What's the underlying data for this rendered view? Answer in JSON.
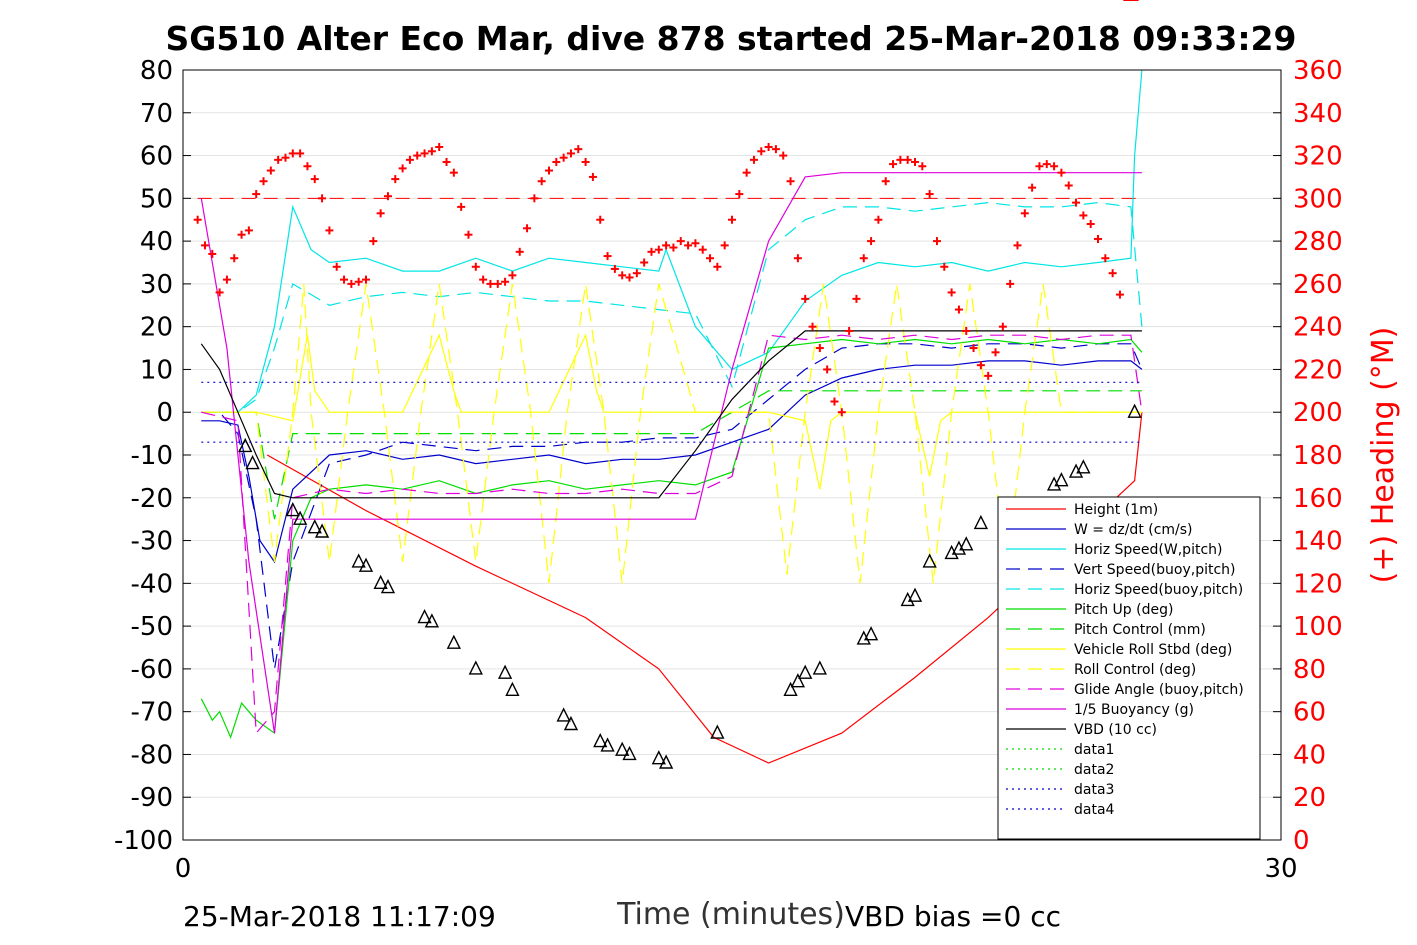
{
  "chart_data": {
    "type": "line",
    "title": "SG510 Alter Eco Mar, dive 878 started 25-Mar-2018 09:33:29",
    "xlabel": "Time (minutes)",
    "ylabel_right": "(+) Heading (°M)",
    "xlim": [
      0,
      30
    ],
    "ylim_left": [
      -100,
      80
    ],
    "ylim_right": [
      0,
      360
    ],
    "x_ticks": [
      "0",
      "30"
    ],
    "y_ticks_left": [
      "80",
      "70",
      "60",
      "50",
      "40",
      "30",
      "20",
      "10",
      "0",
      "-10",
      "-20",
      "-30",
      "-40",
      "-50",
      "-60",
      "-70",
      "-80",
      "-90",
      "-100"
    ],
    "y_ticks_right": [
      "360",
      "340",
      "320",
      "300",
      "280",
      "260",
      "240",
      "220",
      "200",
      "180",
      "160",
      "140",
      "120",
      "100",
      "80",
      "60",
      "40",
      "20",
      "0"
    ],
    "grid": "horizontal",
    "legend_position": "bottom-right",
    "footer_left": "25-Mar-2018 11:17:09",
    "footer_right": "VBD bias =0 cc",
    "colors": {
      "red": "#ff0000",
      "blue": "#0000cc",
      "cyan": "#00e5e5",
      "green": "#00dd00",
      "yellow": "#ffff00",
      "magenta": "#dd00dd",
      "black": "#000000"
    },
    "series": [
      {
        "name": "Height (1m)",
        "color": "#ff0000",
        "dash": "solid",
        "x": [
          2.3,
          5,
          8,
          11,
          13,
          14.5,
          16,
          18,
          20,
          22,
          24,
          26,
          26.2
        ],
        "y": [
          -10,
          -23,
          -36,
          -48,
          -60,
          -76,
          -82,
          -75,
          -62,
          -48,
          -32,
          -16,
          0
        ]
      },
      {
        "name": "W = dz/dt (cm/s)",
        "color": "#0000cc",
        "dash": "solid",
        "x": [
          0.5,
          1,
          1.5,
          1.8,
          2.1,
          2.5,
          3,
          4,
          5,
          6,
          7,
          8,
          9,
          10,
          11,
          12,
          13,
          14,
          15,
          16,
          17,
          18,
          19,
          20,
          21,
          22,
          23,
          24,
          25,
          25.9,
          26.2
        ],
        "y": [
          -2,
          -2,
          -3,
          -15,
          -30,
          -35,
          -18,
          -10,
          -9,
          -11,
          -10,
          -12,
          -11,
          -10,
          -12,
          -11,
          -11,
          -10,
          -7,
          -4,
          4,
          8,
          10,
          11,
          11,
          12,
          12,
          11,
          12,
          12,
          10
        ]
      },
      {
        "name": "Horiz Speed(W,pitch)",
        "color": "#00e5e5",
        "dash": "solid",
        "x": [
          0.5,
          1,
          1.5,
          2,
          2.5,
          3,
          3.5,
          4,
          5,
          6,
          7,
          8,
          9,
          10,
          11,
          12,
          13,
          13.2,
          14,
          15,
          16,
          17,
          18,
          19,
          20,
          21,
          22,
          23,
          24,
          25,
          25.9,
          26,
          26.2
        ],
        "y": [
          0,
          0,
          0,
          4,
          20,
          48,
          38,
          35,
          36,
          33,
          33,
          36,
          33,
          36,
          35,
          34,
          33,
          38,
          20,
          10,
          14,
          26,
          32,
          35,
          34,
          35,
          33,
          35,
          34,
          35,
          36,
          60,
          80
        ]
      },
      {
        "name": "Vert Speed(buoy,pitch)",
        "color": "#0000cc",
        "dash": "dash",
        "x": [
          0.5,
          1,
          1.5,
          2,
          2.5,
          3,
          4,
          5,
          6,
          7,
          8,
          9,
          10,
          11,
          12,
          13,
          14,
          15,
          16,
          17,
          18,
          19,
          20,
          21,
          22,
          23,
          24,
          25,
          25.9,
          26.2
        ],
        "y": [
          0,
          0,
          -5,
          -25,
          -60,
          -35,
          -12,
          -10,
          -7,
          -8,
          -9,
          -8,
          -8,
          -7,
          -7,
          -6,
          -6,
          -4,
          3,
          10,
          15,
          16,
          16,
          15,
          16,
          16,
          15,
          16,
          16,
          10
        ]
      },
      {
        "name": "Horiz Speed(buoy,pitch)",
        "color": "#00e5e5",
        "dash": "dash",
        "x": [
          0.5,
          1,
          1.5,
          2,
          2.5,
          3,
          4,
          5,
          6,
          7,
          8,
          9,
          10,
          11,
          12,
          13,
          14,
          15,
          16,
          17,
          18,
          19,
          20,
          21,
          22,
          23,
          24,
          25,
          25.9,
          26.2
        ],
        "y": [
          0,
          0,
          0,
          3,
          15,
          30,
          25,
          27,
          28,
          27,
          28,
          27,
          26,
          26,
          25,
          24,
          23,
          6,
          38,
          45,
          48,
          48,
          47,
          48,
          49,
          48,
          48,
          49,
          48,
          20
        ]
      },
      {
        "name": "Pitch Up (deg)",
        "color": "#00dd00",
        "dash": "solid",
        "x": [
          0.5,
          0.8,
          1,
          1.3,
          1.6,
          2,
          2.5,
          3,
          3.5,
          4,
          5,
          6,
          7,
          8,
          9,
          10,
          11,
          12,
          13,
          14,
          15,
          16,
          17,
          18,
          19,
          20,
          21,
          22,
          23,
          24,
          25,
          25.9,
          26.2
        ],
        "y": [
          -67,
          -72,
          -70,
          -76,
          -68,
          -72,
          -75,
          -30,
          -20,
          -18,
          -17,
          -18,
          -16,
          -19,
          -17,
          -16,
          -18,
          -17,
          -16,
          -17,
          -14,
          15,
          16,
          17,
          16,
          17,
          16,
          17,
          16,
          17,
          16,
          17,
          14
        ]
      },
      {
        "name": "Pitch Control (mm)",
        "color": "#00dd00",
        "dash": "dash",
        "x": [
          0.5,
          2,
          2.5,
          3,
          4,
          5,
          6,
          7,
          8,
          9,
          10,
          11,
          12,
          13,
          14,
          15,
          16,
          17,
          18,
          19,
          20,
          21,
          22,
          23,
          24,
          25,
          26.2
        ],
        "y": [
          0,
          0,
          -25,
          -5,
          -5,
          -5,
          -5,
          -5,
          -5,
          -5,
          -5,
          -5,
          -5,
          -5,
          -5,
          0,
          5,
          5,
          5,
          5,
          5,
          5,
          5,
          5,
          5,
          5,
          5
        ]
      },
      {
        "name": "Vehicle Roll Stbd (deg)",
        "color": "#ffff00",
        "dash": "solid",
        "x": [
          0.5,
          1.5,
          2,
          3,
          3.4,
          3.6,
          4,
          5,
          6,
          7,
          7.4,
          7.6,
          8,
          9,
          10,
          11,
          11.3,
          11.5,
          12,
          13,
          14,
          15,
          16,
          17,
          17.4,
          17.7,
          18,
          19,
          20,
          20.4,
          20.7,
          21,
          22,
          23,
          24,
          25,
          26.2
        ],
        "y": [
          0,
          0,
          0,
          -2,
          18,
          5,
          0,
          0,
          0,
          18,
          5,
          0,
          0,
          0,
          0,
          18,
          5,
          0,
          0,
          0,
          0,
          0,
          0,
          -2,
          -18,
          -2,
          0,
          0,
          0,
          -15,
          -2,
          0,
          0,
          0,
          0,
          0,
          0
        ]
      },
      {
        "name": "Roll Control (deg)",
        "color": "#ffff00",
        "dash": "dash",
        "x": [
          0.5,
          1,
          1.5,
          2,
          2.5,
          3,
          3.3,
          3.5,
          4,
          4.5,
          5,
          5.5,
          6,
          6.5,
          7,
          7.5,
          8,
          8.5,
          9,
          9.5,
          10,
          10.5,
          11,
          11.5,
          12,
          12.5,
          13,
          14,
          15,
          16,
          16.5,
          17,
          17.5,
          18,
          18.5,
          19,
          19.5,
          20,
          20.5,
          21,
          21.5,
          22,
          22.5,
          23,
          23.5,
          24,
          25,
          26.2
        ],
        "y": [
          0,
          0,
          0,
          0,
          -35,
          0,
          30,
          0,
          -35,
          0,
          30,
          0,
          -35,
          0,
          30,
          0,
          -35,
          0,
          30,
          0,
          -40,
          0,
          30,
          0,
          -40,
          0,
          30,
          0,
          0,
          0,
          -38,
          0,
          30,
          0,
          -40,
          0,
          30,
          0,
          -40,
          0,
          30,
          0,
          -38,
          0,
          30,
          0,
          0,
          0
        ]
      },
      {
        "name": "Glide Angle (buoy,pitch)",
        "color": "#dd00dd",
        "dash": "dash",
        "x": [
          0.5,
          1.5,
          2,
          2.5,
          3,
          4,
          5,
          6,
          7,
          8,
          9,
          10,
          11,
          12,
          13,
          14,
          15,
          16,
          17,
          18,
          19,
          20,
          21,
          22,
          23,
          24,
          25,
          25.9,
          26.2
        ],
        "y": [
          0,
          -2,
          -75,
          -70,
          -20,
          -18,
          -19,
          -18,
          -19,
          -19,
          -18,
          -19,
          -19,
          -18,
          -19,
          -19,
          -15,
          18,
          17,
          18,
          17,
          18,
          17,
          18,
          18,
          17,
          18,
          18,
          0
        ]
      },
      {
        "name": "1/5 Buoyancy (g)",
        "color": "#dd00dd",
        "dash": "solid",
        "x": [
          0.5,
          1.2,
          1.8,
          2.5,
          3,
          4,
          6,
          8,
          10,
          12,
          13,
          14,
          15,
          16,
          17,
          18,
          20,
          22,
          24,
          26.2
        ],
        "y": [
          50,
          15,
          -35,
          -75,
          -25,
          -25,
          -25,
          -25,
          -25,
          -25,
          -25,
          -25,
          10,
          40,
          55,
          56,
          56,
          56,
          56,
          56
        ]
      },
      {
        "name": "VBD (10 cc)",
        "color": "#000000",
        "dash": "solid",
        "x": [
          0.5,
          1,
          1.5,
          2,
          2.5,
          3,
          4,
          6,
          8,
          10,
          11.5,
          13,
          14,
          15,
          16,
          17,
          18,
          20,
          22,
          24,
          26.2
        ],
        "y": [
          16,
          10,
          0,
          -10,
          -19,
          -20,
          -20,
          -20,
          -20,
          -20,
          -20,
          -20,
          -9,
          3,
          12,
          19,
          19,
          19,
          19,
          19,
          19
        ]
      },
      {
        "name": "data1",
        "color": "#00dd00",
        "dash": "dot",
        "x": [],
        "y": []
      },
      {
        "name": "data2",
        "color": "#00dd00",
        "dash": "dot",
        "x": [],
        "y": []
      },
      {
        "name": "data3",
        "color": "#0000cc",
        "dash": "dot",
        "x": [
          0.5,
          26.2
        ],
        "y": [
          7,
          7
        ]
      },
      {
        "name": "data4",
        "color": "#0000cc",
        "dash": "dot",
        "x": [
          0.5,
          26.2
        ],
        "y": [
          -7,
          -7
        ]
      }
    ],
    "heading_ref": {
      "color": "#ff0000",
      "dash": "dash",
      "y_right": 300
    },
    "heading_points": {
      "color": "#ff0000",
      "marker": "+",
      "x": [
        0.4,
        0.6,
        0.8,
        1.0,
        1.2,
        1.4,
        1.6,
        1.8,
        2.0,
        2.2,
        2.4,
        2.6,
        2.8,
        3.0,
        3.2,
        3.4,
        3.6,
        3.8,
        4.0,
        4.2,
        4.4,
        4.6,
        4.8,
        5.0,
        5.2,
        5.4,
        5.6,
        5.8,
        6.0,
        6.2,
        6.4,
        6.6,
        6.8,
        7.0,
        7.2,
        7.4,
        7.6,
        7.8,
        8.0,
        8.2,
        8.4,
        8.6,
        8.8,
        9.0,
        9.2,
        9.4,
        9.6,
        9.8,
        10.0,
        10.2,
        10.4,
        10.6,
        10.8,
        11.0,
        11.2,
        11.4,
        11.6,
        11.8,
        12.0,
        12.2,
        12.4,
        12.6,
        12.8,
        13.0,
        13.2,
        13.4,
        13.6,
        13.8,
        14.0,
        14.2,
        14.4,
        14.6,
        14.8,
        15.0,
        15.2,
        15.4,
        15.6,
        15.8,
        16.0,
        16.2,
        16.4,
        16.6,
        16.8,
        17.0,
        17.2,
        17.4,
        17.6,
        17.8,
        18.0,
        18.2,
        18.4,
        18.6,
        18.8,
        19.0,
        19.2,
        19.4,
        19.6,
        19.8,
        20.0,
        20.2,
        20.4,
        20.6,
        20.8,
        21.0,
        21.2,
        21.4,
        21.6,
        21.8,
        22.0,
        22.2,
        22.4,
        22.6,
        22.8,
        23.0,
        23.2,
        23.4,
        23.6,
        23.8,
        24.0,
        24.2,
        24.4,
        24.6,
        24.8,
        25.0,
        25.2,
        25.4,
        25.6,
        25.8,
        26.0
      ],
      "y_right": [
        290,
        278,
        274,
        256,
        262,
        272,
        283,
        285,
        302,
        308,
        313,
        318,
        319,
        321,
        321,
        315,
        309,
        300,
        285,
        268,
        262,
        260,
        261,
        262,
        280,
        293,
        301,
        309,
        314,
        318,
        320,
        321,
        322,
        324,
        317,
        312,
        296,
        283,
        268,
        262,
        260,
        260,
        261,
        264,
        275,
        286,
        300,
        308,
        313,
        317,
        319,
        321,
        323,
        317,
        310,
        290,
        273,
        267,
        264,
        263,
        265,
        270,
        275,
        276,
        278,
        277,
        280,
        278,
        279,
        276,
        272,
        268,
        278,
        290,
        302,
        312,
        318,
        322,
        324,
        323,
        320,
        308,
        272,
        253,
        240,
        230,
        220,
        205,
        200,
        238,
        253,
        272,
        280,
        290,
        308,
        316,
        318,
        318,
        317,
        315,
        302,
        280,
        268,
        256,
        248,
        238,
        230,
        222,
        217,
        228,
        240,
        260,
        278,
        293,
        305,
        315,
        316,
        315,
        312,
        306,
        298,
        292,
        288,
        281,
        272,
        265,
        255
      ]
    },
    "triangle_markers": {
      "color": "#000000",
      "marker": "triangle",
      "x": [
        1.7,
        1.9,
        3.0,
        3.2,
        3.6,
        3.8,
        4.8,
        5.0,
        5.4,
        5.6,
        6.6,
        6.8,
        7.4,
        8.0,
        8.8,
        9.0,
        10.4,
        10.6,
        11.4,
        11.6,
        12.0,
        12.2,
        13.0,
        13.2,
        14.6,
        16.6,
        16.8,
        17.0,
        17.4,
        18.6,
        18.8,
        19.8,
        20.0,
        20.4,
        21.0,
        21.2,
        21.4,
        21.8,
        23.8,
        24.0,
        24.4,
        24.6,
        26.0
      ],
      "y": [
        -8,
        -12,
        -23,
        -25,
        -27,
        -28,
        -35,
        -36,
        -40,
        -41,
        -48,
        -49,
        -54,
        -60,
        -61,
        -65,
        -71,
        -73,
        -77,
        -78,
        -79,
        -80,
        -81,
        -82,
        -75,
        -65,
        -63,
        -61,
        -60,
        -53,
        -52,
        -44,
        -43,
        -35,
        -33,
        -32,
        -31,
        -26,
        -17,
        -16,
        -14,
        -13,
        0
      ]
    }
  }
}
